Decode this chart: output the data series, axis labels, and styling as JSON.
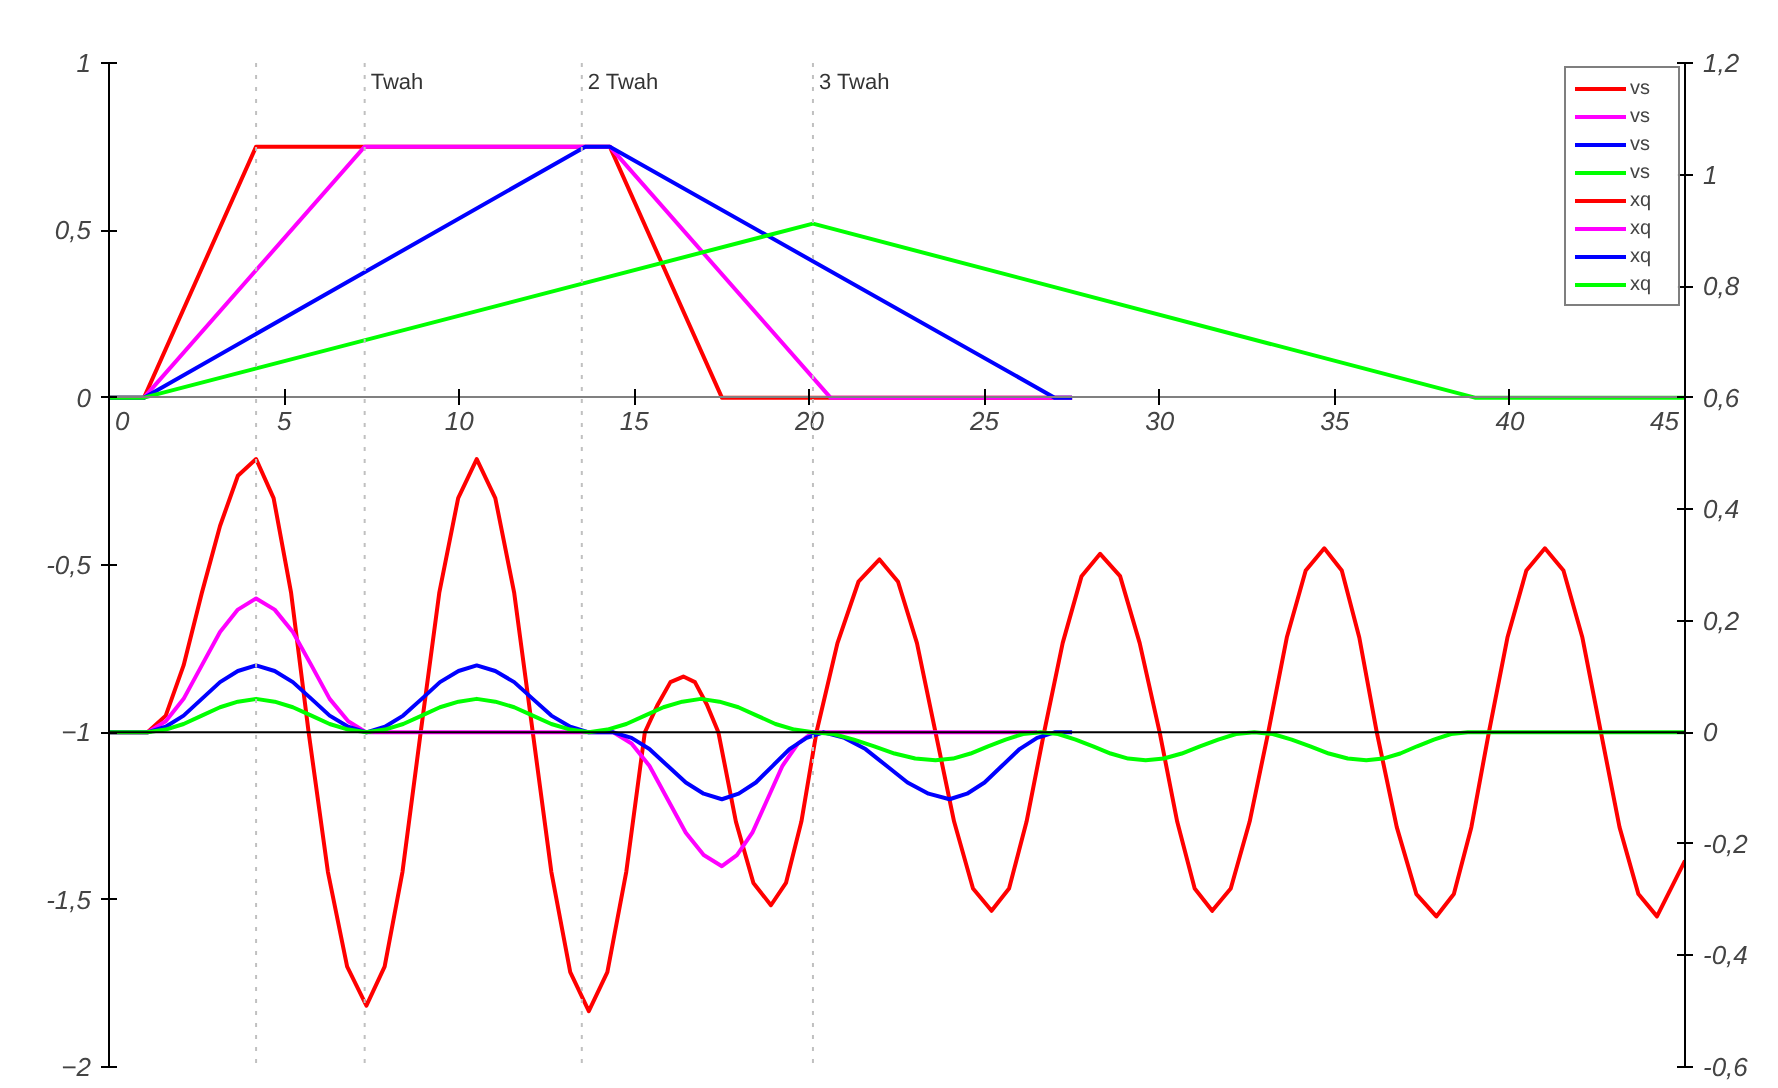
{
  "chart_data": {
    "type": "line",
    "xlim": [
      0,
      45
    ],
    "xticks": [
      0,
      5,
      10,
      15,
      20,
      25,
      30,
      35,
      40,
      45
    ],
    "ylim": [
      -2,
      1
    ],
    "yticks": [
      1,
      {
        "value": 0.5,
        "label": "0,5"
      },
      0,
      {
        "value": -0.5,
        "label": "-0,5"
      },
      -1,
      {
        "value": -1.5,
        "label": "-1,5"
      },
      -2
    ],
    "y2lim": [
      -0.6,
      1.2
    ],
    "y2ticks": [
      {
        "value": 1.2,
        "label": "1,2"
      },
      1,
      {
        "value": 0.8,
        "label": "0,8"
      },
      {
        "value": 0.6,
        "label": "0,6"
      },
      {
        "value": 0.4,
        "label": "0,4"
      },
      {
        "value": 0.2,
        "label": "0,2"
      },
      0,
      {
        "value": -0.2,
        "label": "-0,2"
      },
      {
        "value": -0.4,
        "label": "-0,4"
      },
      {
        "value": -0.6,
        "label": "-0,6"
      }
    ],
    "grid": false,
    "legend": "top right",
    "series": [
      {
        "name": "vs",
        "color": "#ff0000",
        "x": [
          0,
          1,
          4.2,
          14.3,
          17.5,
          27.5
        ],
        "values": [
          0,
          0,
          0.75,
          0.75,
          0,
          0
        ]
      },
      {
        "name": "vs",
        "color": "#ff00ff",
        "x": [
          0,
          1,
          7.3,
          14.3,
          20.6,
          27.5
        ],
        "values": [
          0,
          0,
          0.75,
          0.75,
          0,
          0
        ]
      },
      {
        "name": "vs",
        "color": "#0000ff",
        "x": [
          0,
          1,
          13.6,
          14.3,
          27,
          27.5
        ],
        "values": [
          0,
          0,
          0.75,
          0.75,
          0,
          0
        ]
      },
      {
        "name": "vs",
        "color": "#00ff00",
        "x": [
          0,
          1,
          20.1,
          39,
          45
        ],
        "values": [
          0,
          0,
          0.52,
          0,
          0
        ]
      },
      {
        "name": "xq",
        "color": "#ff0000",
        "axis": "y2",
        "x": [
          0,
          1.1,
          1.62,
          2.13,
          2.65,
          3.17,
          3.68,
          4.2,
          4.7,
          5.2,
          5.7,
          6.25,
          6.8,
          7.35,
          7.87,
          8.38,
          8.9,
          9.43,
          9.97,
          10.5,
          11.03,
          11.57,
          12.1,
          12.63,
          13.17,
          13.7,
          14.23,
          14.77,
          15.3,
          15.67,
          16.03,
          16.4,
          16.73,
          17.07,
          17.4,
          17.9,
          18.4,
          18.9,
          19.33,
          19.77,
          20.2,
          20.8,
          21.4,
          22.0,
          22.53,
          23.07,
          23.6,
          24.13,
          24.67,
          25.2,
          25.7,
          26.2,
          26.7,
          27.23,
          27.77,
          28.3,
          28.87,
          29.43,
          30.0,
          30.5,
          31.0,
          31.5,
          32.03,
          32.57,
          33.1,
          33.63,
          34.17,
          34.7,
          35.2,
          35.7,
          36.2,
          36.77,
          37.33,
          37.9,
          38.4,
          38.9,
          39.4,
          39.93,
          40.47,
          41.0,
          41.53,
          42.07,
          42.6,
          43.13,
          43.67,
          44.2,
          45
        ],
        "values": [
          0,
          0,
          0.03,
          0.12,
          0.25,
          0.37,
          0.46,
          0.49,
          0.42,
          0.25,
          0,
          -0.25,
          -0.42,
          -0.49,
          -0.42,
          -0.25,
          0,
          0.25,
          0.42,
          0.49,
          0.42,
          0.25,
          0,
          -0.25,
          -0.43,
          -0.5,
          -0.43,
          -0.25,
          0,
          0.05,
          0.09,
          0.1,
          0.09,
          0.05,
          0,
          -0.16,
          -0.27,
          -0.31,
          -0.27,
          -0.16,
          0,
          0.16,
          0.27,
          0.31,
          0.27,
          0.16,
          0,
          -0.16,
          -0.28,
          -0.32,
          -0.28,
          -0.16,
          0,
          0.16,
          0.28,
          0.32,
          0.28,
          0.16,
          0,
          -0.16,
          -0.28,
          -0.32,
          -0.28,
          -0.16,
          0,
          0.17,
          0.29,
          0.33,
          0.29,
          0.17,
          0,
          -0.17,
          -0.29,
          -0.33,
          -0.29,
          -0.17,
          0,
          0.17,
          0.29,
          0.33,
          0.29,
          0.17,
          0,
          -0.17,
          -0.29,
          -0.33,
          -0.23
        ]
      },
      {
        "name": "xq",
        "color": "#ff00ff",
        "axis": "y2",
        "x": [
          0,
          1.1,
          1.62,
          2.13,
          2.65,
          3.17,
          3.68,
          4.2,
          4.73,
          5.25,
          5.78,
          6.3,
          6.83,
          7.35,
          14.4,
          14.92,
          15.43,
          15.95,
          16.47,
          16.98,
          17.5,
          17.93,
          18.37,
          18.8,
          19.23,
          19.67,
          20.1,
          26.5
        ],
        "values": [
          0,
          0,
          0.02,
          0.06,
          0.12,
          0.18,
          0.22,
          0.24,
          0.22,
          0.18,
          0.12,
          0.06,
          0.02,
          0,
          0,
          -0.02,
          -0.06,
          -0.12,
          -0.18,
          -0.22,
          -0.24,
          -0.22,
          -0.18,
          -0.12,
          -0.06,
          -0.02,
          0,
          0
        ]
      },
      {
        "name": "xq",
        "color": "#0000ff",
        "axis": "y2",
        "x": [
          0,
          1.1,
          1.62,
          2.13,
          2.65,
          3.17,
          3.68,
          4.2,
          4.73,
          5.25,
          5.78,
          6.3,
          6.83,
          7.35,
          7.88,
          8.4,
          8.93,
          9.45,
          9.98,
          10.5,
          11.03,
          11.57,
          12.1,
          12.63,
          13.17,
          13.7,
          14.4,
          14.92,
          15.43,
          15.95,
          16.47,
          16.98,
          17.5,
          17.98,
          18.47,
          18.95,
          19.43,
          19.92,
          20.4,
          21.0,
          21.6,
          22.2,
          22.8,
          23.4,
          24.0,
          24.5,
          25.0,
          25.5,
          26.0,
          26.5,
          27.0,
          27.5
        ],
        "values": [
          0,
          0,
          0.01,
          0.03,
          0.06,
          0.09,
          0.11,
          0.12,
          0.11,
          0.09,
          0.06,
          0.03,
          0.01,
          0,
          0.01,
          0.03,
          0.06,
          0.09,
          0.11,
          0.12,
          0.11,
          0.09,
          0.06,
          0.03,
          0.01,
          0,
          0,
          -0.01,
          -0.03,
          -0.06,
          -0.09,
          -0.11,
          -0.12,
          -0.11,
          -0.09,
          -0.06,
          -0.03,
          -0.01,
          0,
          -0.01,
          -0.03,
          -0.06,
          -0.09,
          -0.11,
          -0.12,
          -0.11,
          -0.09,
          -0.06,
          -0.03,
          -0.01,
          0,
          0
        ]
      },
      {
        "name": "xq",
        "color": "#00ff00",
        "axis": "y2",
        "x": [
          0,
          1.1,
          1.62,
          2.13,
          2.65,
          3.17,
          3.68,
          4.2,
          4.73,
          5.25,
          5.78,
          6.3,
          6.83,
          7.35,
          7.88,
          8.4,
          8.93,
          9.45,
          9.98,
          10.5,
          11.03,
          11.57,
          12.1,
          12.63,
          13.17,
          13.7,
          14.23,
          14.77,
          15.3,
          15.83,
          16.37,
          16.9,
          17.43,
          17.97,
          18.5,
          19.03,
          19.57,
          20.1,
          20.68,
          21.27,
          21.85,
          22.43,
          23.02,
          23.6,
          24.1,
          24.6,
          25.1,
          25.6,
          26.1,
          26.6,
          27.1,
          27.6,
          28.1,
          28.6,
          29.1,
          29.6,
          30.12,
          30.63,
          31.15,
          31.67,
          32.18,
          32.7,
          33.23,
          33.77,
          34.3,
          34.83,
          35.37,
          35.9,
          36.38,
          36.87,
          37.35,
          37.83,
          38.32,
          38.8,
          45
        ],
        "values": [
          0,
          0,
          0.005,
          0.015,
          0.03,
          0.045,
          0.055,
          0.06,
          0.055,
          0.045,
          0.03,
          0.015,
          0.005,
          0,
          0.005,
          0.015,
          0.03,
          0.045,
          0.055,
          0.06,
          0.055,
          0.045,
          0.03,
          0.015,
          0.005,
          0,
          0.005,
          0.015,
          0.03,
          0.045,
          0.055,
          0.06,
          0.055,
          0.045,
          0.03,
          0.015,
          0.005,
          0,
          -0.003,
          -0.013,
          -0.025,
          -0.038,
          -0.047,
          -0.05,
          -0.047,
          -0.038,
          -0.025,
          -0.013,
          -0.003,
          0,
          -0.003,
          -0.013,
          -0.025,
          -0.038,
          -0.047,
          -0.05,
          -0.047,
          -0.038,
          -0.025,
          -0.013,
          -0.003,
          0,
          -0.003,
          -0.013,
          -0.025,
          -0.038,
          -0.047,
          -0.05,
          -0.047,
          -0.038,
          -0.025,
          -0.013,
          -0.003,
          0,
          0
        ]
      }
    ],
    "ref_lines": [
      {
        "axis": "y2",
        "value": 0,
        "color": "#000000",
        "line_style": "solid"
      },
      {
        "axis": "x",
        "value": 4.2,
        "color": "#c0c0c0",
        "line_style": "dotted"
      },
      {
        "axis": "x",
        "value": 7.3,
        "label": "Twah",
        "color": "#c0c0c0",
        "line_style": "dotted"
      },
      {
        "axis": "x",
        "value": 13.5,
        "label": "2 Twah",
        "color": "#c0c0c0",
        "line_style": "dotted"
      },
      {
        "axis": "x",
        "value": 20.1,
        "label": "3 Twah",
        "color": "#c0c0c0",
        "line_style": "dotted"
      }
    ]
  }
}
